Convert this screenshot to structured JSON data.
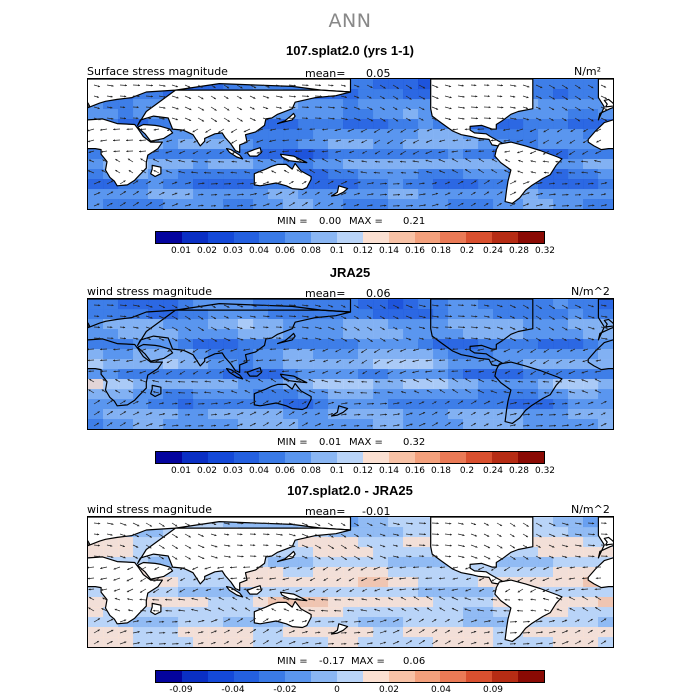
{
  "suptitle": "ANN",
  "levels_abs": [
    "0.01",
    "0.02",
    "0.03",
    "0.04",
    "0.06",
    "0.08",
    "0.1",
    "0.12",
    "0.14",
    "0.16",
    "0.18",
    "0.2",
    "0.24",
    "0.28",
    "0.32"
  ],
  "colors_abs": [
    "#04049e",
    "#0a2fc4",
    "#1449d8",
    "#2460e0",
    "#3a7ae6",
    "#5b96ee",
    "#8ab6f3",
    "#b9d4f8",
    "#fbe0d2",
    "#f8c2a6",
    "#f3a07c",
    "#ea7a56",
    "#d9502f",
    "#b62c14",
    "#8a0a04"
  ],
  "levels_diff": [
    "-0.09",
    "-0.04",
    "-0.02",
    "0",
    "0.02",
    "0.04",
    "0.09"
  ],
  "colors_diff": [
    "#04049e",
    "#0a2fc4",
    "#1449d8",
    "#2460e0",
    "#3a7ae6",
    "#5b96ee",
    "#8ab6f3",
    "#b9d4f8",
    "#fbe0d2",
    "#f8c2a6",
    "#f3a07c",
    "#ea7a56",
    "#d9502f",
    "#b62c14",
    "#8a0a04"
  ],
  "panels": [
    {
      "title": "107.splat2.0 (yrs 1-1)",
      "left_label": "Surface stress magnitude",
      "mean_label": "mean=",
      "mean_value": "0.05",
      "units": "N/m²",
      "min_label": "MIN =",
      "min_value": "0.00",
      "max_label": "MAX =",
      "max_value": "0.21",
      "field_level": 4.2,
      "field_amp": 1.8
    },
    {
      "title": "JRA25",
      "left_label": "wind stress magnitude",
      "mean_label": "mean=",
      "mean_value": "0.06",
      "units": "N/m^2",
      "min_label": "MIN =",
      "min_value": "0.01",
      "max_label": "MAX =",
      "max_value": "0.32",
      "field_level": 4.6,
      "field_amp": 2.0
    },
    {
      "title": "107.splat2.0 - JRA25",
      "left_label": "wind stress magnitude",
      "mean_label": "mean=",
      "mean_value": "-0.01",
      "units": "N/m^2",
      "min_label": "MIN =",
      "min_value": "-0.17",
      "max_label": "MAX =",
      "max_value": "0.06",
      "field_level": 7.2,
      "field_amp": 1.4
    }
  ]
}
